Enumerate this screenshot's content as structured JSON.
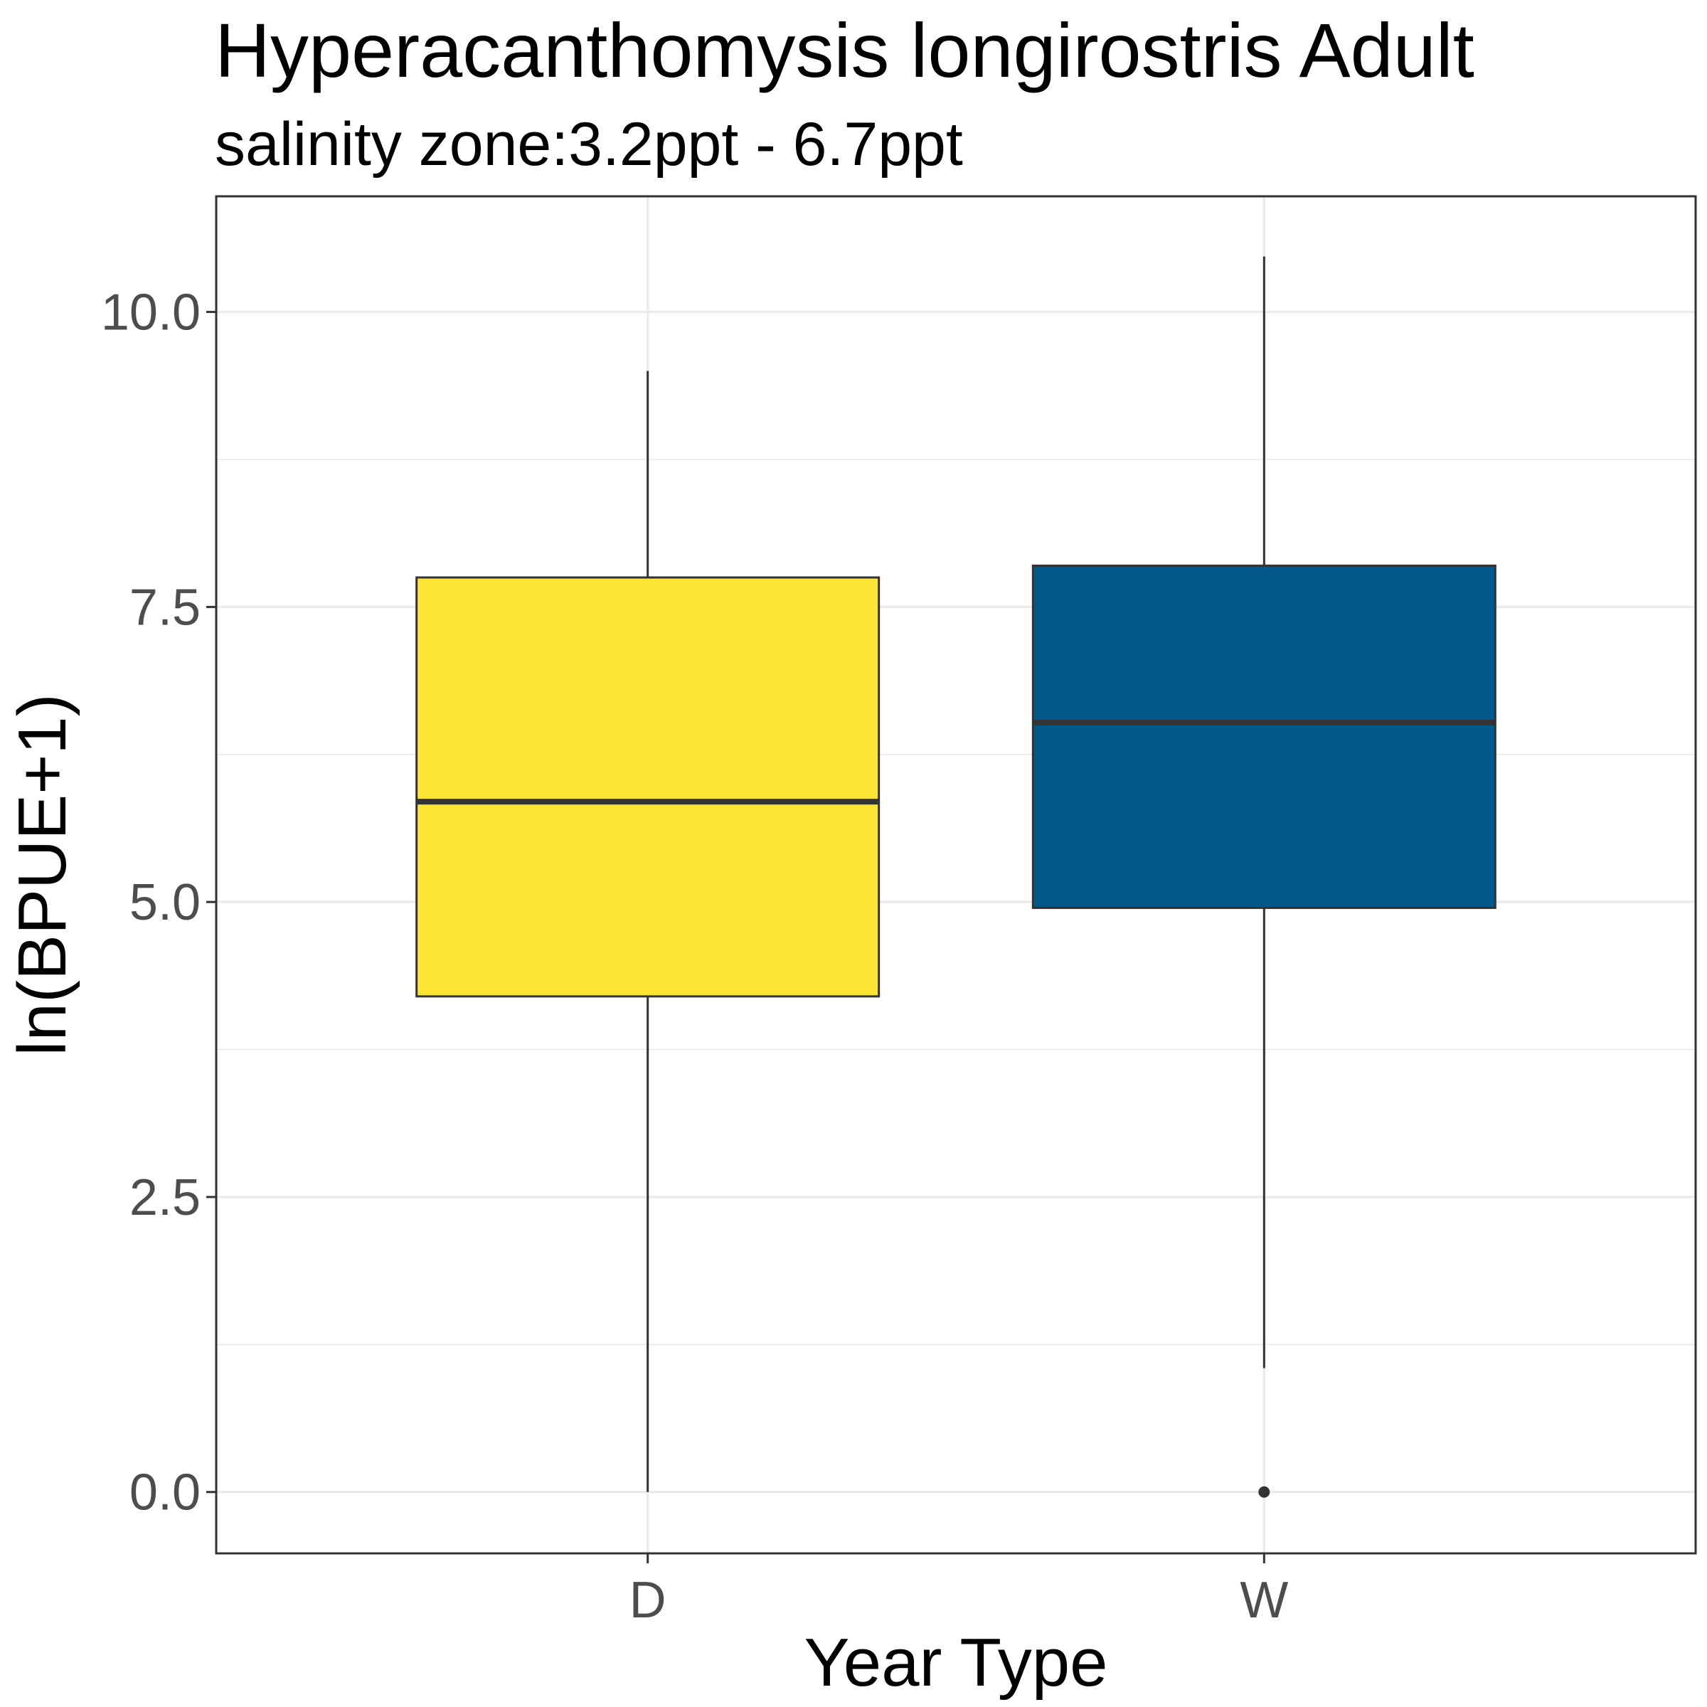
{
  "chart_data": {
    "type": "boxplot",
    "title": "Hyperacanthomysis longirostris Adult",
    "subtitle": "salinity zone:3.2ppt - 6.7ppt",
    "xlabel": "Year Type",
    "ylabel": "ln(BPUE+1)",
    "ylim": [
      -0.52,
      10.98
    ],
    "yticks": [
      "0.0",
      "2.5",
      "5.0",
      "7.5",
      "10.0"
    ],
    "ytick_values": [
      0,
      2.5,
      5,
      7.5,
      10
    ],
    "yminor_values": [
      1.25,
      3.75,
      6.25,
      8.75
    ],
    "grid": true,
    "legend": "none",
    "categories": [
      "D",
      "W"
    ],
    "boxes": [
      {
        "category": "D",
        "lower_whisker": 0.0,
        "q1": 4.2,
        "median": 5.85,
        "q3": 7.75,
        "upper_whisker": 9.5,
        "outliers": [],
        "color": "#FDE333"
      },
      {
        "category": "W",
        "lower_whisker": 1.05,
        "q1": 4.95,
        "median": 6.52,
        "q3": 7.85,
        "upper_whisker": 10.47,
        "outliers": [
          0.0
        ],
        "color": "#00588B"
      }
    ]
  }
}
